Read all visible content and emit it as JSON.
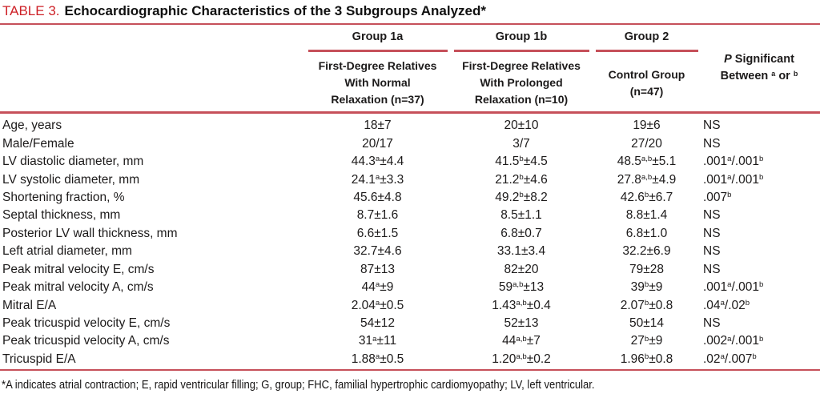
{
  "title": {
    "label": "TABLE 3.",
    "text": "Echocardiographic Characteristics of the 3 Subgroups Analyzed*"
  },
  "colors": {
    "title_red": "#CE2127",
    "rule_red": "#C6505A",
    "text": "#1C1A1A"
  },
  "header": {
    "groups": [
      {
        "name": "Group 1a",
        "sub": "First-Degree Relatives\nWith Normal\nRelaxation (n=37)"
      },
      {
        "name": "Group 1b",
        "sub": "First-Degree Relatives\nWith Prolonged\nRelaxation (n=10)"
      },
      {
        "name": "Group 2",
        "sub": "Control Group\n(n=47)"
      }
    ],
    "p_column": {
      "italic": "P",
      "line1_rest": " Significant",
      "line2": "Between ^a^ or ^b^"
    }
  },
  "rows": [
    {
      "label": "Age, years",
      "g1a": "18±7",
      "g1b": "20±10",
      "g2": "19±6",
      "p": "NS"
    },
    {
      "label": "Male/Female",
      "g1a": "20/17",
      "g1b": "3/7",
      "g2": "27/20",
      "p": "NS"
    },
    {
      "label": "LV diastolic diameter, mm",
      "g1a": "44.3^a^±4.4",
      "g1b": "41.5^b^±4.5",
      "g2": "48.5^a,b^±5.1",
      "p": ".001^a^/.001^b^"
    },
    {
      "label": "LV systolic diameter, mm",
      "g1a": "24.1^a^±3.3",
      "g1b": "21.2^b^±4.6",
      "g2": "27.8^a,b^±4.9",
      "p": ".001^a^/.001^b^"
    },
    {
      "label": "Shortening fraction, %",
      "g1a": "45.6±4.8",
      "g1b": "49.2^b^±8.2",
      "g2": "42.6^b^±6.7",
      "p": ".007^b^"
    },
    {
      "label": "Septal thickness, mm",
      "g1a": "8.7±1.6",
      "g1b": "8.5±1.1",
      "g2": "8.8±1.4",
      "p": "NS"
    },
    {
      "label": "Posterior LV wall thickness, mm",
      "g1a": "6.6±1.5",
      "g1b": "6.8±0.7",
      "g2": "6.8±1.0",
      "p": "NS"
    },
    {
      "label": "Left atrial diameter, mm",
      "g1a": "32.7±4.6",
      "g1b": "33.1±3.4",
      "g2": "32.2±6.9",
      "p": "NS"
    },
    {
      "label": "Peak mitral velocity E, cm/s",
      "g1a": "87±13",
      "g1b": "82±20",
      "g2": "79±28",
      "p": "NS"
    },
    {
      "label": "Peak mitral velocity A, cm/s",
      "g1a": "44^a^±9",
      "g1b": "59^a,b^±13",
      "g2": "39^b^±9",
      "p": ".001^a^/.001^b^"
    },
    {
      "label": "Mitral E/A",
      "g1a": "2.04^a^±0.5",
      "g1b": "1.43^a,b^±0.4",
      "g2": "2.07^b^±0.8",
      "p": ".04^a^/.02^b^"
    },
    {
      "label": "Peak tricuspid velocity E, cm/s",
      "g1a": "54±12",
      "g1b": "52±13",
      "g2": "50±14",
      "p": "NS"
    },
    {
      "label": "Peak tricuspid velocity A, cm/s",
      "g1a": "31^a^±11",
      "g1b": "44^a,b^±7",
      "g2": "27^b^±9",
      "p": ".002^a^/.001^b^"
    },
    {
      "label": "Tricuspid E/A",
      "g1a": "1.88^a^±0.5",
      "g1b": "1.20^a,b^±0.2",
      "g2": "1.96^b^±0.8",
      "p": ".02^a^/.007^b^"
    }
  ],
  "footnote": "*A indicates atrial contraction; E, rapid ventricular filling; G, group; FHC, familial hypertrophic cardiomyopathy; LV, left ventricular."
}
